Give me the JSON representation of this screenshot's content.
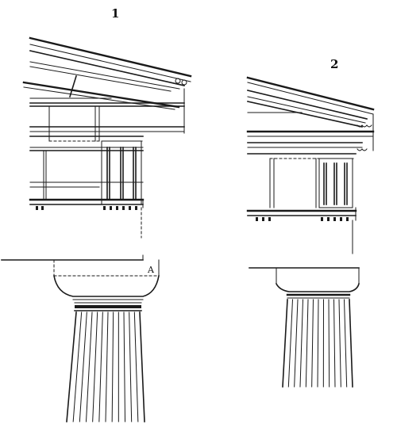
{
  "figures": [
    {
      "number": "1",
      "marker": "A"
    },
    {
      "number": "2"
    }
  ]
}
